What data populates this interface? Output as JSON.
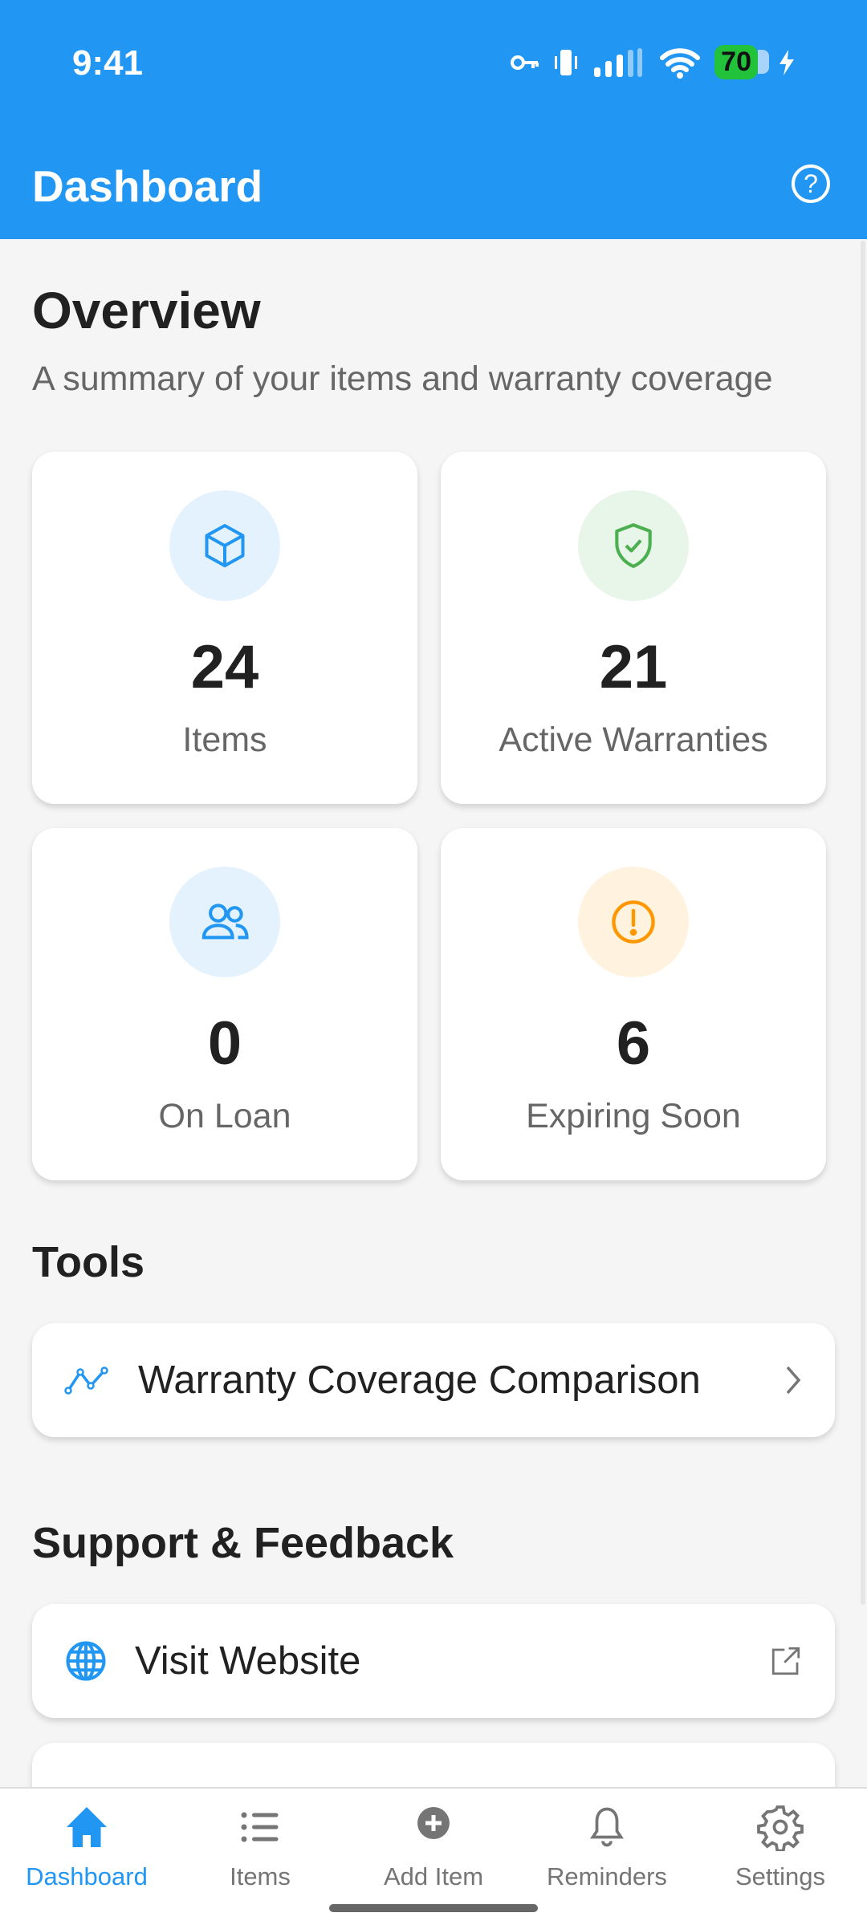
{
  "status_bar": {
    "time": "9:41",
    "battery": "70"
  },
  "header": {
    "title": "Dashboard",
    "help_icon": "help-circle-icon"
  },
  "overview": {
    "title": "Overview",
    "subtitle": "A summary of your items and warranty coverage",
    "stats": [
      {
        "value": "24",
        "label": "Items",
        "icon": "cube-icon",
        "color": "#2196F3",
        "bg": "#E3F2FD"
      },
      {
        "value": "21",
        "label": "Active Warranties",
        "icon": "shield-check-icon",
        "color": "#4CAF50",
        "bg": "#E8F5E9"
      },
      {
        "value": "0",
        "label": "On Loan",
        "icon": "people-icon",
        "color": "#2196F3",
        "bg": "#E3F2FD"
      },
      {
        "value": "6",
        "label": "Expiring Soon",
        "icon": "alert-circle-icon",
        "color": "#FF9800",
        "bg": "#FFF3E0"
      }
    ]
  },
  "tools": {
    "title": "Tools",
    "items": [
      {
        "label": "Warranty Coverage Comparison",
        "icon": "trend-line-icon"
      }
    ]
  },
  "support": {
    "title": "Support & Feedback",
    "items": [
      {
        "label": "Visit Website",
        "icon": "globe-icon"
      }
    ]
  },
  "nav": {
    "items": [
      {
        "label": "Dashboard",
        "icon": "home-icon",
        "active": true
      },
      {
        "label": "Items",
        "icon": "list-icon"
      },
      {
        "label": "Add Item",
        "icon": "add-circle-icon"
      },
      {
        "label": "Reminders",
        "icon": "bell-icon"
      },
      {
        "label": "Settings",
        "icon": "gear-icon"
      }
    ]
  },
  "colors": {
    "primary": "#2196F3",
    "background": "#f5f5f5"
  }
}
